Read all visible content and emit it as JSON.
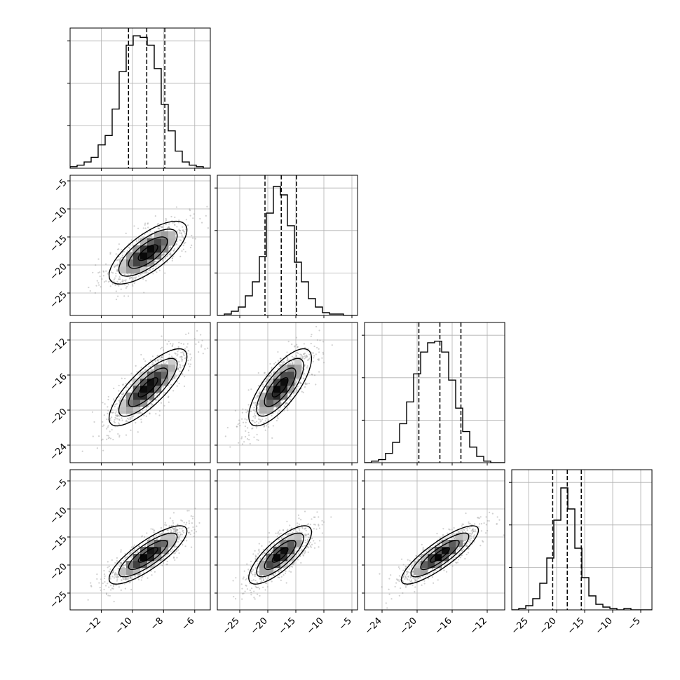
{
  "chart_data": {
    "type": "corner",
    "colors": {
      "line": "#000000",
      "grid": "#b0b0b0",
      "scatter": "#9a9a9a",
      "shade_light": "#d0d0d0",
      "shade_dark": "#000000"
    },
    "grid": true,
    "parameters": [
      {
        "index": 0,
        "range": [
          -14.0,
          -5.0
        ],
        "ticks": [
          -12,
          -10,
          -8,
          -6
        ],
        "tick_labels": [
          "−12",
          "−10",
          "−8",
          "−6"
        ],
        "mean": -9.0,
        "std": 1.25,
        "quantiles": [
          -10.25,
          -9.08,
          -7.92
        ],
        "hist_counts": [
          1,
          2,
          4,
          7,
          15,
          21,
          38,
          62,
          79,
          85,
          84,
          79,
          64,
          41,
          24,
          11,
          4,
          2,
          1,
          0
        ],
        "hist_ylim": [
          0,
          90
        ]
      },
      {
        "index": 1,
        "range": [
          -29.0,
          -4.0
        ],
        "ticks": [
          -25,
          -20,
          -15,
          -10,
          -5
        ],
        "tick_labels": [
          "−25",
          "−20",
          "−15",
          "−10",
          "−5"
        ],
        "mean": -17.8,
        "std": 2.8,
        "quantiles": [
          -20.5,
          -17.6,
          -14.9
        ],
        "hist_counts": [
          0,
          1,
          3,
          6,
          14,
          24,
          42,
          73,
          92,
          86,
          64,
          38,
          24,
          12,
          6,
          2,
          1,
          1,
          0,
          0
        ],
        "hist_ylim": [
          0,
          100
        ]
      },
      {
        "index": 2,
        "range": [
          -26.0,
          -10.0
        ],
        "ticks": [
          -24,
          -20,
          -16,
          -12
        ],
        "tick_labels": [
          "−24",
          "−20",
          "−16",
          "−12"
        ],
        "mean": -17.4,
        "std": 2.2,
        "quantiles": [
          -19.8,
          -17.4,
          -15.0
        ],
        "hist_counts": [
          0,
          1,
          2,
          6,
          13,
          25,
          39,
          57,
          71,
          77,
          78,
          71,
          53,
          35,
          20,
          10,
          4,
          1,
          0,
          0
        ],
        "hist_ylim": [
          0,
          90
        ]
      },
      {
        "index": 3,
        "range": [
          -28.0,
          -3.0
        ],
        "ticks": [
          -25,
          -20,
          -15,
          -10,
          -5
        ],
        "tick_labels": [
          "−25",
          "−20",
          "−15",
          "−10",
          "−5"
        ],
        "mean": -18.2,
        "std": 2.6,
        "quantiles": [
          -20.7,
          -18.1,
          -15.6
        ],
        "hist_counts": [
          0,
          1,
          3,
          8,
          19,
          37,
          64,
          87,
          72,
          44,
          23,
          10,
          4,
          2,
          1,
          0,
          1,
          0,
          0,
          0
        ],
        "hist_ylim": [
          0,
          100
        ]
      }
    ],
    "correlations": [
      [
        1.0,
        0.72,
        0.8,
        0.82
      ],
      [
        0.72,
        1.0,
        0.75,
        0.78
      ],
      [
        0.8,
        0.75,
        1.0,
        0.85
      ],
      [
        0.82,
        0.78,
        0.85,
        1.0
      ]
    ],
    "contour_levels_sigma": [
      0.5,
      1.0,
      1.5,
      2.0
    ],
    "n_scatter_points": 900
  }
}
